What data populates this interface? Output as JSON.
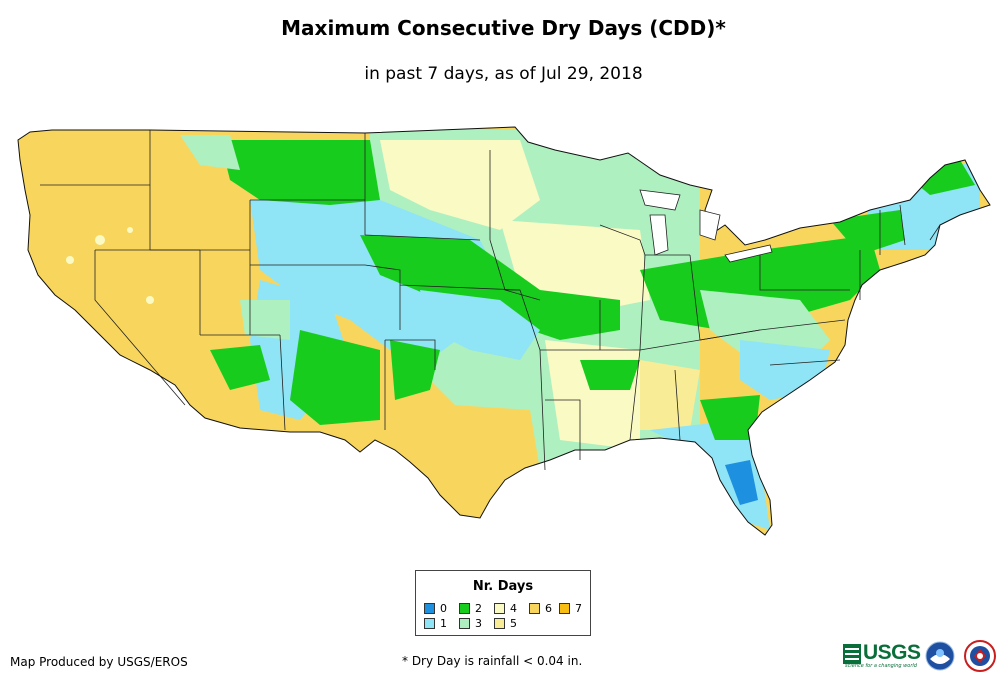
{
  "title": "Maximum Consecutive Dry Days (CDD)*",
  "subtitle": "in past 7 days, as of Jul 29, 2018",
  "legend": {
    "title": "Nr. Days",
    "items": [
      {
        "label": "0",
        "color": "#1e90e0"
      },
      {
        "label": "1",
        "color": "#8fe4f5"
      },
      {
        "label": "2",
        "color": "#18cc1e"
      },
      {
        "label": "3",
        "color": "#aef0c0"
      },
      {
        "label": "4",
        "color": "#fafac4"
      },
      {
        "label": "5",
        "color": "#f8ec96"
      },
      {
        "label": "6",
        "color": "#f8d65e"
      },
      {
        "label": "7",
        "color": "#f8be14"
      }
    ]
  },
  "footer": {
    "credit": "Map Produced by USGS/EROS",
    "note": "* Dry Day is rainfall < 0.04 in."
  },
  "logos": {
    "usgs": "USGS",
    "usgs_tagline": "science for a changing world",
    "noaa": "noaa-logo",
    "nws": "nws-logo"
  }
}
